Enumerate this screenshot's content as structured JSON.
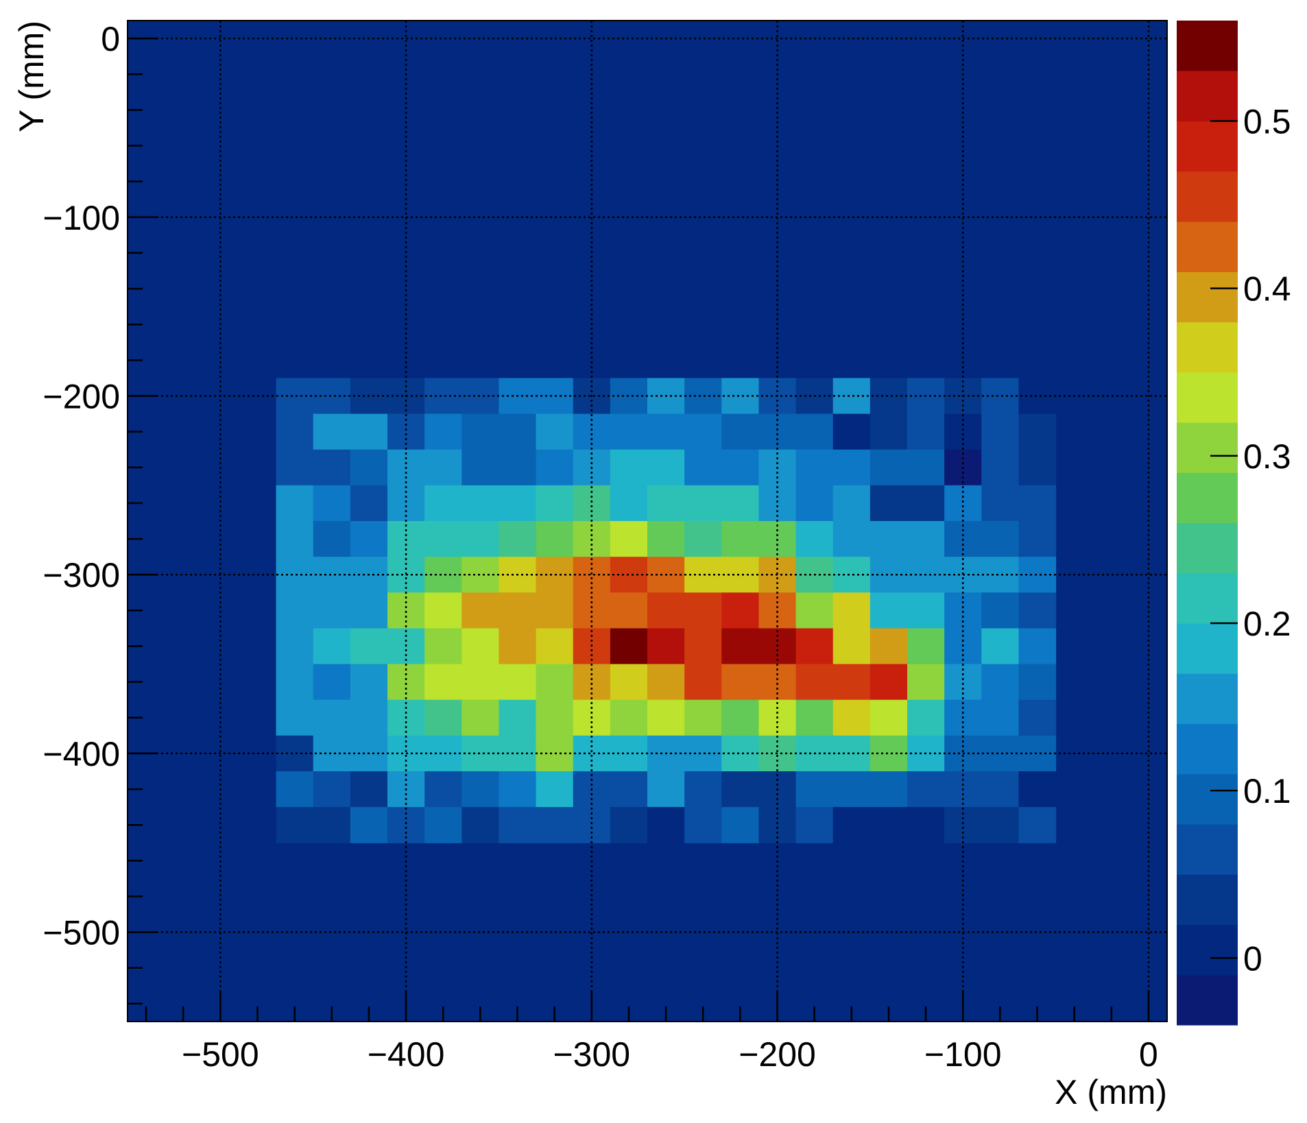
{
  "chart_data": {
    "type": "heatmap",
    "title": "",
    "xlabel": "X (mm)",
    "ylabel": "Y (mm)",
    "xlim": [
      -550,
      10
    ],
    "ylim": [
      -550,
      10
    ],
    "x_ticks": [
      -500,
      -400,
      -300,
      -200,
      -100,
      0
    ],
    "y_ticks": [
      0,
      -100,
      -200,
      -300,
      -400,
      -500
    ],
    "x_tick_labels": [
      "−500",
      "−400",
      "−300",
      "−200",
      "−100",
      "0"
    ],
    "y_tick_labels": [
      "0",
      "−100",
      "−200",
      "−300",
      "−400",
      "−500"
    ],
    "grid": true,
    "grid_style": "dotted",
    "background_value": 0,
    "bin_width": 20,
    "bin_height": 20,
    "x_bins_start": [
      -470,
      -450,
      -430,
      -410,
      -390,
      -370,
      -350,
      -330,
      -310,
      -290,
      -270,
      -250,
      -230,
      -210,
      -190,
      -170,
      -150,
      -130,
      -110,
      -90,
      -70
    ],
    "y_bins_top": [
      -190,
      -210,
      -230,
      -250,
      -270,
      -290,
      -310,
      -330,
      -350,
      -370,
      -390,
      -410,
      -430
    ],
    "values": [
      [
        0.06,
        0.06,
        0.04,
        0.05,
        0.06,
        0.07,
        0.12,
        0.12,
        0.03,
        0.1,
        0.14,
        0.1,
        0.14,
        0.06,
        0.05,
        0.14,
        0.03,
        0.06,
        0.03,
        0.06,
        0.02
      ],
      [
        0.06,
        0.14,
        0.16,
        0.07,
        0.13,
        0.1,
        0.11,
        0.16,
        0.13,
        0.13,
        0.13,
        0.12,
        0.1,
        0.1,
        0.1,
        0.01,
        0.05,
        0.07,
        0.02,
        0.08,
        0.04
      ],
      [
        0.07,
        0.07,
        0.1,
        0.16,
        0.16,
        0.11,
        0.11,
        0.13,
        0.15,
        0.18,
        0.18,
        0.13,
        0.13,
        0.15,
        0.13,
        0.13,
        0.09,
        0.09,
        -0.04,
        0.07,
        0.05
      ],
      [
        0.16,
        0.13,
        0.07,
        0.16,
        0.19,
        0.19,
        0.19,
        0.22,
        0.25,
        0.17,
        0.22,
        0.22,
        0.22,
        0.15,
        0.13,
        0.16,
        0.05,
        0.05,
        0.12,
        0.08,
        0.07
      ],
      [
        0.14,
        0.1,
        0.13,
        0.21,
        0.21,
        0.21,
        0.25,
        0.28,
        0.32,
        0.34,
        0.27,
        0.25,
        0.28,
        0.28,
        0.18,
        0.16,
        0.16,
        0.14,
        0.11,
        0.11,
        0.08
      ],
      [
        0.15,
        0.16,
        0.16,
        0.22,
        0.28,
        0.31,
        0.37,
        0.41,
        0.44,
        0.47,
        0.42,
        0.38,
        0.38,
        0.41,
        0.25,
        0.21,
        0.15,
        0.15,
        0.14,
        0.14,
        0.13
      ],
      [
        0.14,
        0.16,
        0.16,
        0.31,
        0.33,
        0.41,
        0.41,
        0.41,
        0.43,
        0.43,
        0.46,
        0.46,
        0.49,
        0.43,
        0.31,
        0.37,
        0.18,
        0.18,
        0.13,
        0.1,
        0.07
      ],
      [
        0.14,
        0.19,
        0.21,
        0.21,
        0.31,
        0.33,
        0.4,
        0.37,
        0.46,
        0.56,
        0.5,
        0.46,
        0.53,
        0.53,
        0.49,
        0.37,
        0.41,
        0.28,
        0.13,
        0.18,
        0.13
      ],
      [
        0.16,
        0.13,
        0.15,
        0.31,
        0.34,
        0.34,
        0.34,
        0.31,
        0.41,
        0.37,
        0.41,
        0.46,
        0.43,
        0.43,
        0.46,
        0.46,
        0.49,
        0.31,
        0.16,
        0.13,
        0.1
      ],
      [
        0.16,
        0.14,
        0.16,
        0.21,
        0.25,
        0.31,
        0.21,
        0.31,
        0.34,
        0.31,
        0.34,
        0.31,
        0.28,
        0.34,
        0.27,
        0.37,
        0.34,
        0.21,
        0.12,
        0.12,
        0.07
      ],
      [
        0.05,
        0.14,
        0.14,
        0.18,
        0.18,
        0.22,
        0.22,
        0.31,
        0.18,
        0.18,
        0.15,
        0.15,
        0.21,
        0.24,
        0.21,
        0.21,
        0.27,
        0.19,
        0.1,
        0.1,
        0.1
      ],
      [
        0.11,
        0.07,
        0.04,
        0.14,
        0.07,
        0.11,
        0.13,
        0.19,
        0.07,
        0.07,
        0.16,
        0.07,
        0.05,
        0.05,
        0.1,
        0.1,
        0.1,
        0.07,
        0.07,
        0.06,
        0.02
      ],
      [
        0.05,
        0.05,
        0.11,
        0.07,
        0.11,
        0.04,
        0.07,
        0.07,
        0.07,
        0.05,
        0.02,
        0.07,
        0.11,
        0.04,
        0.07,
        0.02,
        0.02,
        0.02,
        0.04,
        0.05,
        0.07
      ]
    ],
    "colorbar": {
      "min": -0.04,
      "max": 0.56,
      "levels": 20,
      "ticks": [
        0,
        0.1,
        0.2,
        0.3,
        0.4,
        0.5
      ],
      "tick_labels": [
        "0",
        "0.1",
        "0.2",
        "0.3",
        "0.4",
        "0.5"
      ],
      "palette": [
        "#0b1b74",
        "#02287f",
        "#05388b",
        "#0a4ea4",
        "#0863b3",
        "#0d78c5",
        "#1894cc",
        "#20b4cb",
        "#2dc1b5",
        "#42c38c",
        "#63c957",
        "#8fd43c",
        "#bce32d",
        "#d0cd1c",
        "#d19c16",
        "#d66412",
        "#cf3b0f",
        "#c8200d",
        "#b4100b",
        "#9a0806",
        "#720000"
      ]
    }
  }
}
